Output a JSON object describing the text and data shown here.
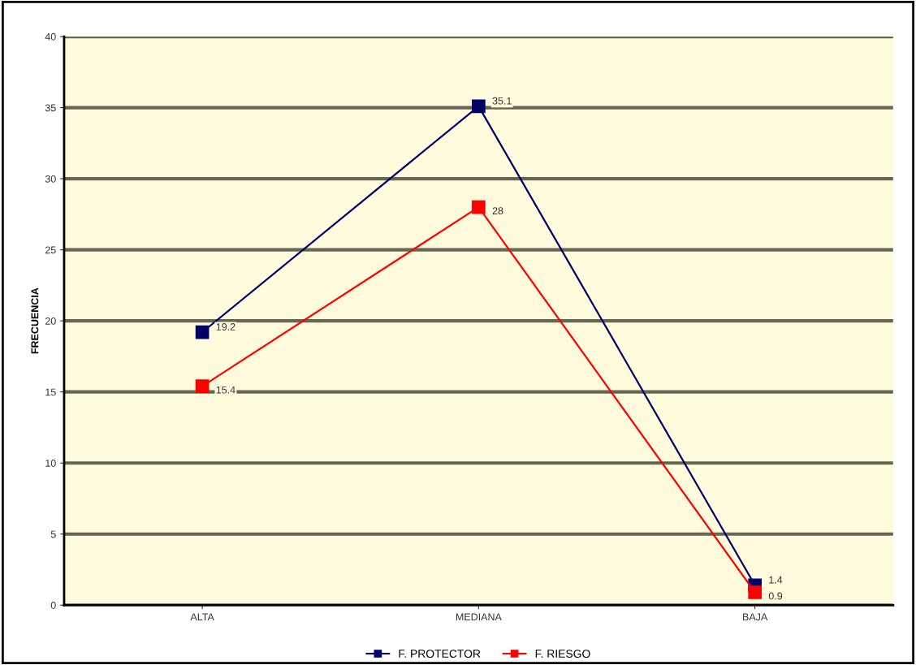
{
  "chart_data": {
    "type": "line",
    "ylabel": "FRECUENCIA",
    "categories": [
      "ALTA",
      "MEDIANA",
      "BAJA"
    ],
    "series": [
      {
        "name": "F. PROTECTOR",
        "color": "#000066",
        "values": [
          19.2,
          35.1,
          1.4
        ]
      },
      {
        "name": "F. RIESGO",
        "color": "#ff0000",
        "values": [
          15.4,
          28,
          0.9
        ]
      }
    ],
    "ylim": [
      0,
      40
    ],
    "yticks": [
      0,
      5,
      10,
      15,
      20,
      25,
      30,
      35,
      40
    ],
    "grid": "y",
    "legend": "bottom",
    "marker": "square",
    "line_style": "solid",
    "data_labels": true
  }
}
